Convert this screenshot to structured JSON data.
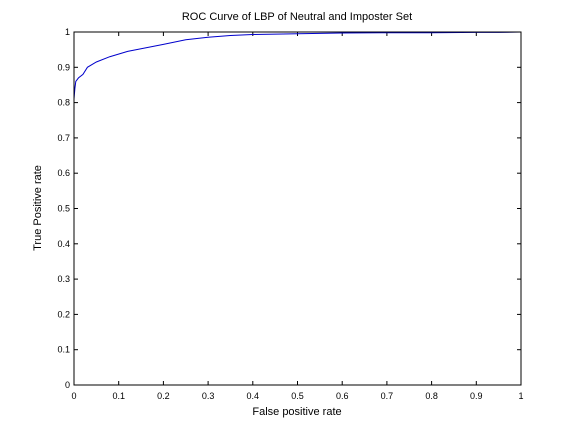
{
  "chart_data": {
    "type": "line",
    "title": "ROC Curve of LBP of Neutral and Imposter Set",
    "xlabel": "False positive rate",
    "ylabel": "True Positive rate",
    "xlim": [
      0,
      1
    ],
    "ylim": [
      0,
      1
    ],
    "xticks": [
      "0",
      "0.1",
      "0.2",
      "0.3",
      "0.4",
      "0.5",
      "0.6",
      "0.7",
      "0.8",
      "0.9",
      "1"
    ],
    "yticks": [
      "0",
      "0.1",
      "0.2",
      "0.3",
      "0.4",
      "0.5",
      "0.6",
      "0.7",
      "0.8",
      "0.9",
      "1"
    ],
    "grid": false,
    "series": [
      {
        "color": "#0000cc",
        "x": [
          0,
          0,
          0.002,
          0.004,
          0.01,
          0.02,
          0.03,
          0.05,
          0.08,
          0.12,
          0.16,
          0.2,
          0.25,
          0.3,
          0.35,
          0.4,
          0.5,
          0.6,
          0.7,
          0.8,
          0.9,
          0.95,
          1
        ],
        "y": [
          0,
          0.81,
          0.84,
          0.86,
          0.87,
          0.88,
          0.9,
          0.915,
          0.93,
          0.945,
          0.955,
          0.965,
          0.978,
          0.985,
          0.99,
          0.993,
          0.995,
          0.997,
          0.998,
          0.998,
          0.999,
          0.999,
          1.0
        ]
      }
    ]
  }
}
